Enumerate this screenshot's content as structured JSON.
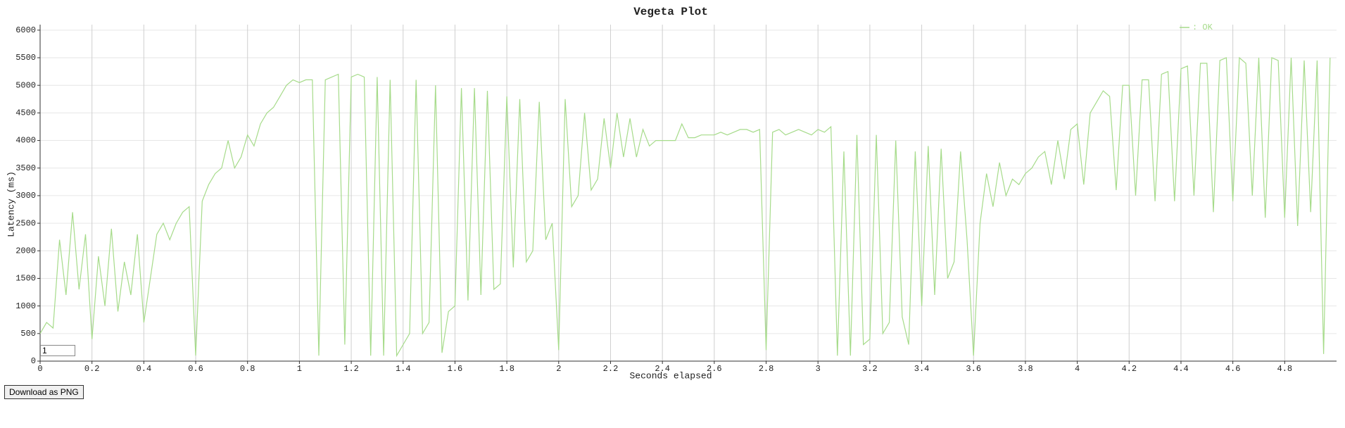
{
  "chart_data": {
    "type": "line",
    "title": "Vegeta Plot",
    "x_label": "Seconds elapsed",
    "y_label": "Latency (ms)",
    "x": [
      0,
      0.025,
      0.05,
      0.075,
      0.1,
      0.125,
      0.15,
      0.175,
      0.2,
      0.225,
      0.25,
      0.275,
      0.3,
      0.325,
      0.35,
      0.375,
      0.4,
      0.425,
      0.45,
      0.475,
      0.5,
      0.525,
      0.55,
      0.575,
      0.6,
      0.625,
      0.65,
      0.675,
      0.7,
      0.725,
      0.75,
      0.775,
      0.8,
      0.825,
      0.85,
      0.875,
      0.9,
      0.925,
      0.95,
      0.975,
      1,
      1.025,
      1.05,
      1.075,
      1.1,
      1.125,
      1.15,
      1.175,
      1.2,
      1.225,
      1.25,
      1.275,
      1.3,
      1.325,
      1.35,
      1.375,
      1.4,
      1.425,
      1.45,
      1.475,
      1.5,
      1.525,
      1.55,
      1.575,
      1.6,
      1.625,
      1.65,
      1.675,
      1.7,
      1.725,
      1.75,
      1.775,
      1.8,
      1.825,
      1.85,
      1.875,
      1.9,
      1.925,
      1.95,
      1.975,
      2,
      2.025,
      2.05,
      2.075,
      2.1,
      2.125,
      2.15,
      2.175,
      2.2,
      2.225,
      2.25,
      2.275,
      2.3,
      2.325,
      2.35,
      2.375,
      2.4,
      2.425,
      2.45,
      2.475,
      2.5,
      2.525,
      2.55,
      2.575,
      2.6,
      2.625,
      2.65,
      2.675,
      2.7,
      2.725,
      2.75,
      2.775,
      2.8,
      2.825,
      2.85,
      2.875,
      2.9,
      2.925,
      2.95,
      2.975,
      3,
      3.025,
      3.05,
      3.075,
      3.1,
      3.125,
      3.15,
      3.175,
      3.2,
      3.225,
      3.25,
      3.275,
      3.3,
      3.325,
      3.35,
      3.375,
      3.4,
      3.425,
      3.45,
      3.475,
      3.5,
      3.525,
      3.55,
      3.575,
      3.6,
      3.625,
      3.65,
      3.675,
      3.7,
      3.725,
      3.75,
      3.775,
      3.8,
      3.825,
      3.85,
      3.875,
      3.9,
      3.925,
      3.95,
      3.975,
      4,
      4.025,
      4.05,
      4.075,
      4.1,
      4.125,
      4.15,
      4.175,
      4.2,
      4.225,
      4.25,
      4.275,
      4.3,
      4.325,
      4.35,
      4.375,
      4.4,
      4.425,
      4.45,
      4.475,
      4.5,
      4.525,
      4.55,
      4.575,
      4.6,
      4.625,
      4.65,
      4.675,
      4.7,
      4.725,
      4.75,
      4.775,
      4.8,
      4.825,
      4.85,
      4.875,
      4.9,
      4.925,
      4.95,
      4.975
    ],
    "series": [
      {
        "name": ": OK",
        "color": "#a6db8a",
        "values": [
          500,
          700,
          600,
          2200,
          1200,
          2700,
          1300,
          2300,
          400,
          1900,
          1000,
          2400,
          900,
          1800,
          1200,
          2300,
          700,
          1500,
          2300,
          2500,
          2200,
          2500,
          2700,
          2800,
          100,
          2900,
          3200,
          3400,
          3500,
          4000,
          3500,
          3700,
          4100,
          3900,
          4300,
          4500,
          4600,
          4800,
          5000,
          5100,
          5050,
          5100,
          5100,
          100,
          5100,
          5150,
          5200,
          300,
          5150,
          5200,
          5150,
          100,
          5150,
          100,
          5100,
          100,
          300,
          500,
          5100,
          500,
          700,
          5000,
          150,
          900,
          1000,
          4950,
          1100,
          4950,
          1200,
          4900,
          1300,
          1400,
          4800,
          1700,
          4750,
          1800,
          2000,
          4700,
          2200,
          2500,
          200,
          4750,
          2800,
          3000,
          4500,
          3100,
          3300,
          4400,
          3500,
          4500,
          3700,
          4400,
          3700,
          4200,
          3900,
          4000,
          4000,
          4000,
          4000,
          4300,
          4050,
          4050,
          4100,
          4100,
          4100,
          4150,
          4100,
          4150,
          4200,
          4200,
          4150,
          4200,
          200,
          4150,
          4200,
          4100,
          4150,
          4200,
          4150,
          4100,
          4200,
          4150,
          4250,
          100,
          3800,
          100,
          4100,
          300,
          400,
          4100,
          500,
          700,
          4000,
          800,
          300,
          3800,
          1000,
          3900,
          1200,
          3850,
          1500,
          1800,
          3800,
          2200,
          100,
          2500,
          3400,
          2800,
          3600,
          3000,
          3300,
          3200,
          3400,
          3500,
          3700,
          3800,
          3200,
          4000,
          3300,
          4200,
          4300,
          3200,
          4500,
          4700,
          4900,
          4800,
          3100,
          5000,
          5000,
          3000,
          5100,
          5100,
          2900,
          5200,
          5250,
          2900,
          5300,
          5350,
          3000,
          5400,
          5400,
          2700,
          5450,
          5500,
          2900,
          5500,
          5400,
          3000,
          5500,
          2600,
          5500,
          5450,
          2600,
          5500,
          2450,
          5450,
          2700,
          5450,
          130,
          5500
        ]
      }
    ],
    "xlim": [
      0,
      5
    ],
    "ylim": [
      0,
      6100
    ],
    "xticks": [
      0,
      0.2,
      0.4,
      0.6,
      0.8,
      1,
      1.2,
      1.4,
      1.6,
      1.8,
      2,
      2.2,
      2.4,
      2.6,
      2.8,
      3,
      3.2,
      3.4,
      3.6,
      3.8,
      4,
      4.2,
      4.4,
      4.6,
      4.8
    ],
    "yticks": [
      0,
      500,
      1000,
      1500,
      2000,
      2500,
      3000,
      3500,
      4000,
      4500,
      5000,
      5500,
      6000
    ],
    "grid": true,
    "legend": "top-right"
  },
  "controls": {
    "resolution": "1",
    "download_button": "Download as PNG"
  }
}
